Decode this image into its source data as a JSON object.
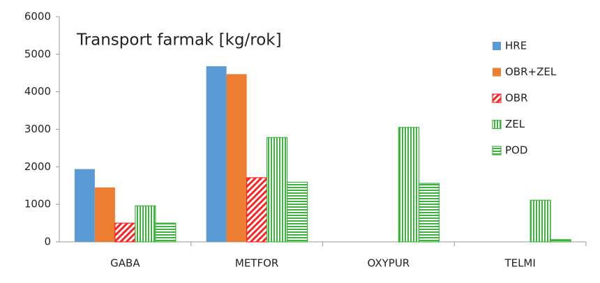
{
  "chart_data": {
    "type": "bar",
    "title": "Transport farmak [kg/rok]",
    "categories": [
      "GABA",
      "METFOR",
      "OXYPUR",
      "TELMI"
    ],
    "series": [
      {
        "name": "HRE",
        "color": "#5b9bd5",
        "pattern": "solid",
        "values": [
          1940,
          4680,
          0,
          0
        ]
      },
      {
        "name": "OBR+ZEL",
        "color": "#ed7d31",
        "pattern": "solid",
        "values": [
          1450,
          4470,
          0,
          0
        ]
      },
      {
        "name": "OBR",
        "color": "#ff2020",
        "pattern": "diagonal",
        "values": [
          500,
          1710,
          0,
          0
        ]
      },
      {
        "name": "ZEL",
        "color": "#3cb33c",
        "pattern": "vertical",
        "values": [
          960,
          2780,
          3050,
          1110
        ]
      },
      {
        "name": "POD",
        "color": "#3cb33c",
        "pattern": "horizontal",
        "values": [
          500,
          1590,
          1560,
          60
        ]
      }
    ],
    "ylim": [
      0,
      6000
    ],
    "yticks": [
      0,
      1000,
      2000,
      3000,
      4000,
      5000,
      6000
    ],
    "grid": false,
    "legend": "upper-right"
  }
}
